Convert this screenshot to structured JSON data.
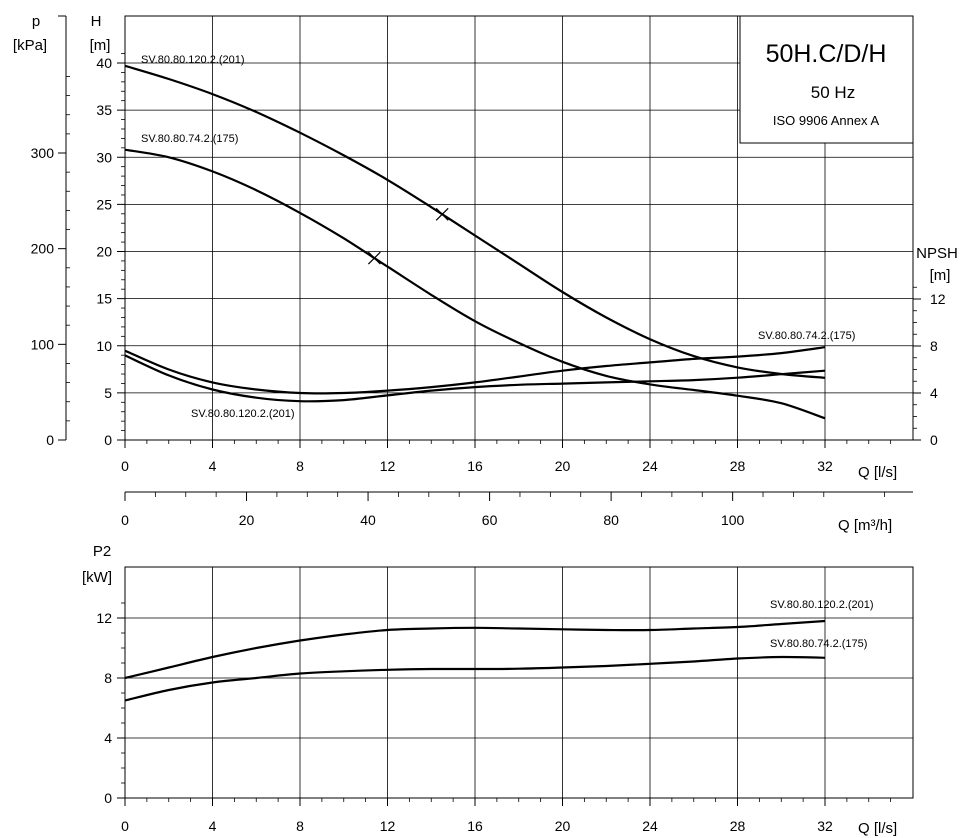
{
  "chart_data": [
    {
      "type": "line",
      "title": "50H.C/D/H",
      "subtitle": "50 Hz",
      "note": "ISO 9906 Annex A",
      "xlabel": "Q [l/s]",
      "xlim": [
        0,
        32
      ],
      "x_ticks": [
        "0",
        "4",
        "8",
        "12",
        "16",
        "20",
        "24",
        "28",
        "32"
      ],
      "secondary_x_label": "Q [m³/h]",
      "secondary_x_lim": [
        0,
        115.2
      ],
      "secondary_x_ticks": [
        "0",
        "20",
        "40",
        "60",
        "80",
        "100"
      ],
      "ylabel_p": [
        "p",
        "[kPa]"
      ],
      "ylabel_h": [
        "H",
        "[m]"
      ],
      "ylabel_npsh": [
        "NPSH",
        "[m]"
      ],
      "ylim": [
        0,
        40
      ],
      "y_ticks": [
        "0",
        "5",
        "10",
        "15",
        "20",
        "25",
        "30",
        "35",
        "40"
      ],
      "p_ticks": [
        "0",
        "100",
        "200",
        "300"
      ],
      "npsh_ticks": [
        "0",
        "4",
        "8",
        "12"
      ],
      "grid": true,
      "head_series": [
        {
          "name": "SV.80.80.120.2.(201)",
          "x": [
            0,
            2,
            4,
            6,
            8,
            10,
            12,
            14,
            16,
            18,
            20,
            22,
            24,
            26,
            28,
            30,
            32
          ],
          "y": [
            39.7,
            38.3,
            36.7,
            34.8,
            32.6,
            30.2,
            27.6,
            24.7,
            21.7,
            18.7,
            15.7,
            13.0,
            10.7,
            8.9,
            7.7,
            7.0,
            6.6
          ],
          "marker_x": 14.5
        },
        {
          "name": "SV.80.80.74.2.(175)",
          "x": [
            0,
            2,
            4,
            6,
            8,
            10,
            12,
            14,
            16,
            18,
            20,
            22,
            24,
            26,
            28,
            30,
            32
          ],
          "y": [
            30.8,
            30.0,
            28.5,
            26.5,
            24.1,
            21.4,
            18.4,
            15.4,
            12.6,
            10.3,
            8.3,
            6.8,
            5.9,
            5.3,
            4.7,
            3.9,
            2.3
          ],
          "marker_x": 11.4
        }
      ],
      "npsh_series": [
        {
          "name": "SV.80.80.120.2.(201)",
          "x": [
            0,
            2,
            4,
            6,
            8,
            10,
            12,
            14,
            16,
            18,
            20,
            22,
            24,
            26,
            28,
            30,
            32
          ],
          "y": [
            7.2,
            5.5,
            4.3,
            3.6,
            3.3,
            3.4,
            3.8,
            4.2,
            4.5,
            4.7,
            4.8,
            4.9,
            5.0,
            5.1,
            5.3,
            5.6,
            5.9
          ]
        },
        {
          "name": "SV.80.80.74.2.(175)",
          "x": [
            0,
            2,
            4,
            6,
            8,
            10,
            12,
            14,
            16,
            18,
            20,
            22,
            24,
            26,
            28,
            30,
            32
          ],
          "y": [
            7.6,
            6.0,
            4.9,
            4.3,
            4.0,
            4.0,
            4.2,
            4.5,
            4.9,
            5.4,
            5.9,
            6.3,
            6.6,
            6.9,
            7.1,
            7.4,
            7.9
          ]
        }
      ]
    },
    {
      "type": "line",
      "ylabel": [
        "P2",
        "[kW]"
      ],
      "xlabel": "Q [l/s]",
      "xlim": [
        0,
        32
      ],
      "x_ticks": [
        "0",
        "4",
        "8",
        "12",
        "16",
        "20",
        "24",
        "28",
        "32"
      ],
      "ylim": [
        0,
        14
      ],
      "y_ticks": [
        "0",
        "4",
        "8",
        "12"
      ],
      "grid": true,
      "series": [
        {
          "name": "SV.80.80.120.2.(201)",
          "x": [
            0,
            2,
            4,
            6,
            8,
            10,
            12,
            14,
            16,
            18,
            20,
            22,
            24,
            26,
            28,
            30,
            32
          ],
          "y": [
            8.0,
            8.7,
            9.4,
            10.0,
            10.5,
            10.9,
            11.2,
            11.3,
            11.35,
            11.3,
            11.25,
            11.2,
            11.2,
            11.3,
            11.4,
            11.6,
            11.8
          ]
        },
        {
          "name": "SV.80.80.74.2.(175)",
          "x": [
            0,
            2,
            4,
            6,
            8,
            10,
            12,
            14,
            16,
            18,
            20,
            22,
            24,
            26,
            28,
            30,
            32
          ],
          "y": [
            6.5,
            7.2,
            7.7,
            8.0,
            8.3,
            8.45,
            8.55,
            8.6,
            8.6,
            8.62,
            8.7,
            8.8,
            8.95,
            9.1,
            9.3,
            9.4,
            9.35
          ]
        }
      ]
    }
  ]
}
